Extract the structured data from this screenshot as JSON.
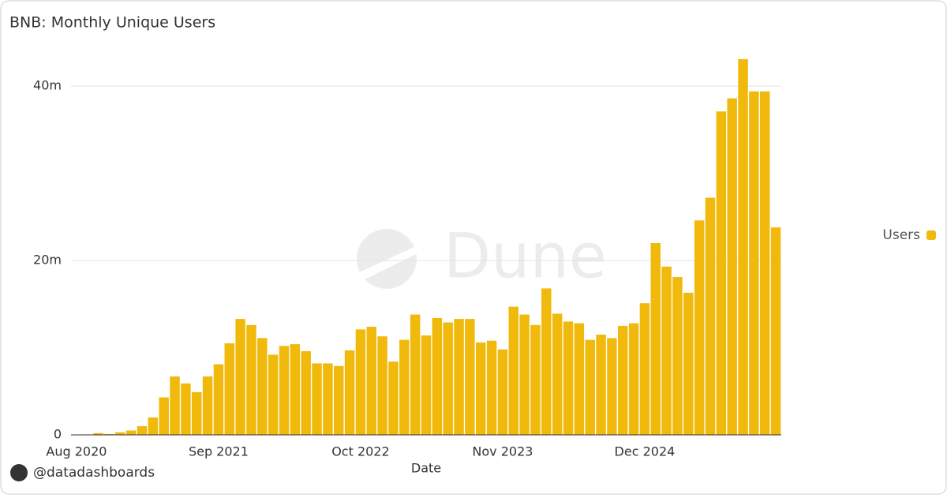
{
  "chart_data": {
    "type": "bar",
    "title": "BNB: Monthly Unique Users",
    "x_label": "Date",
    "categories": [
      "Aug 2020",
      null,
      null,
      null,
      null,
      null,
      null,
      null,
      null,
      null,
      null,
      null,
      null,
      "Sep 2021",
      null,
      null,
      null,
      null,
      null,
      null,
      null,
      null,
      null,
      null,
      null,
      null,
      "Oct 2022",
      null,
      null,
      null,
      null,
      null,
      null,
      null,
      null,
      null,
      null,
      null,
      null,
      "Nov 2023",
      null,
      null,
      null,
      null,
      null,
      null,
      null,
      null,
      null,
      null,
      null,
      null,
      "Dec 2024",
      null,
      null,
      null,
      null,
      null,
      null,
      null,
      null,
      null,
      null,
      null,
      null
    ],
    "series": [
      {
        "name": "Users",
        "color": "#f0b90b",
        "values": [
          0,
          50000,
          200000,
          100000,
          300000,
          500000,
          1000000,
          2000000,
          4300000,
          6700000,
          5900000,
          4900000,
          6700000,
          8100000,
          10500000,
          13300000,
          12600000,
          11100000,
          9200000,
          10200000,
          10400000,
          9600000,
          8200000,
          8200000,
          7900000,
          9700000,
          12100000,
          12400000,
          11300000,
          8400000,
          10900000,
          13800000,
          11400000,
          13400000,
          12900000,
          13300000,
          13300000,
          10600000,
          10800000,
          9800000,
          14700000,
          13800000,
          12600000,
          16800000,
          13900000,
          13000000,
          12800000,
          10900000,
          11500000,
          11100000,
          12500000,
          12800000,
          15100000,
          22000000,
          19300000,
          18100000,
          16300000,
          24600000,
          27200000,
          37100000,
          38600000,
          43100000,
          39400000,
          39400000,
          23800000
        ]
      }
    ],
    "ylim": [
      0,
      44000000
    ],
    "yticks": [
      0,
      {
        "value": 20000000,
        "label": "20m"
      },
      {
        "value": 40000000,
        "label": "40m"
      }
    ],
    "grid": true,
    "legend": "right",
    "watermark": "Dune",
    "credit": "@datadashboards"
  }
}
